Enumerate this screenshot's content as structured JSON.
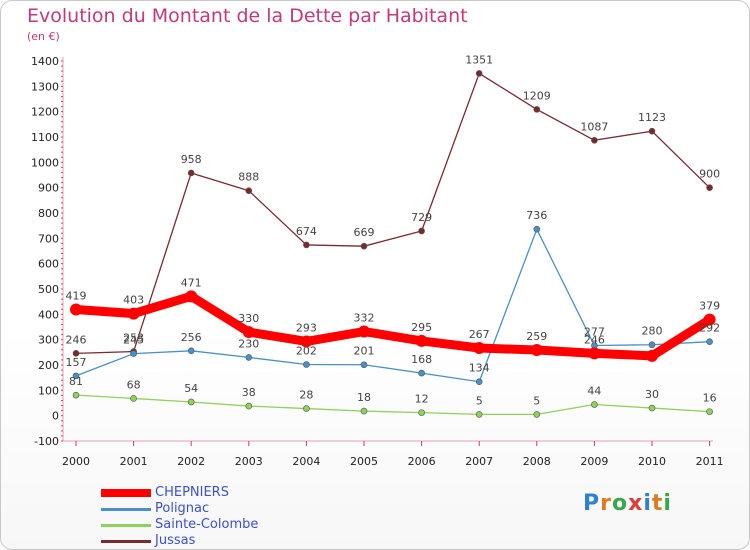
{
  "title": "Evolution du Montant de la Dette par Habitant",
  "subtitle": "(en €)",
  "logo_text": "Proxiti",
  "chart_data": {
    "type": "line",
    "title": "Evolution du Montant de la Dette par Habitant",
    "ylabel": "(en €)",
    "xlabel": "",
    "ylim": [
      -100,
      1400
    ],
    "y_ticks": [
      -100,
      0,
      100,
      200,
      300,
      400,
      500,
      600,
      700,
      800,
      900,
      1000,
      1100,
      1200,
      1300,
      1400
    ],
    "y_tick_labels": [
      "-100",
      "0",
      "100",
      "200",
      "300",
      "400",
      "500",
      "600",
      "700",
      "800",
      "900",
      "1000",
      "1100",
      "1200",
      "1300",
      "1400"
    ],
    "categories": [
      "2000",
      "2001",
      "2002",
      "2003",
      "2004",
      "2005",
      "2006",
      "2007",
      "2008",
      "2009",
      "2010",
      "2011"
    ],
    "legend_position": "bottom-left",
    "grid": false,
    "series": [
      {
        "name": "CHEPNIERS",
        "color": "#ff0000",
        "values": [
          419,
          403,
          471,
          330,
          293,
          332,
          295,
          267,
          259,
          246,
          236,
          379
        ],
        "labels": [
          "419",
          "403",
          "471",
          "330",
          "293",
          "332",
          "295",
          "267",
          "259",
          "246",
          "",
          "379"
        ]
      },
      {
        "name": "Polignac",
        "color": "#4a90c8",
        "values": [
          157,
          245,
          256,
          230,
          202,
          201,
          168,
          134,
          736,
          277,
          280,
          292
        ],
        "labels": [
          "157",
          "245",
          "256",
          "230",
          "202",
          "201",
          "168",
          "134",
          "736",
          "277",
          "280",
          "292"
        ]
      },
      {
        "name": "Sainte-Colombe",
        "color": "#8fd25a",
        "values": [
          81,
          68,
          54,
          38,
          28,
          18,
          12,
          5,
          5,
          44,
          30,
          16
        ],
        "labels": [
          "81",
          "68",
          "54",
          "38",
          "28",
          "18",
          "12",
          "5",
          "5",
          "44",
          "30",
          "16"
        ]
      },
      {
        "name": "Jussas",
        "color": "#7a2a2e",
        "values": [
          246,
          253,
          958,
          888,
          674,
          669,
          729,
          1351,
          1209,
          1087,
          1123,
          900
        ],
        "labels": [
          "246",
          "253",
          "958",
          "888",
          "674",
          "669",
          "729",
          "1351",
          "1209",
          "1087",
          "1123",
          "900"
        ]
      }
    ]
  }
}
